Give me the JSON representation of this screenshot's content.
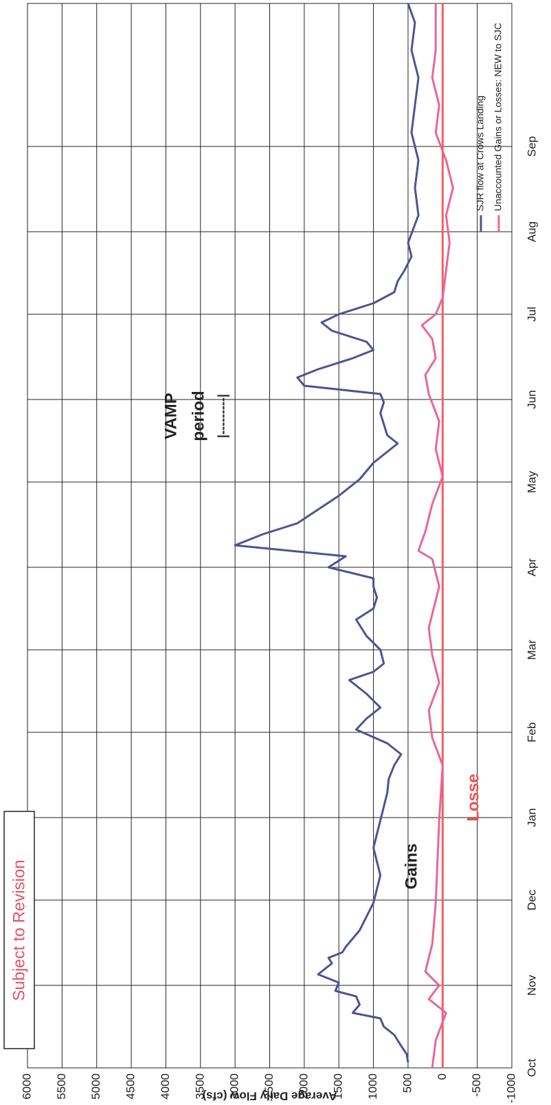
{
  "chart_data": {
    "type": "line",
    "subtitle": "Subject to Revision",
    "y_label": "Average Daily Flow (cfs)",
    "xlim": [
      0,
      387
    ],
    "xticks": [
      {
        "value": 0,
        "label": "Oct"
      },
      {
        "value": 30,
        "label": "Nov"
      },
      {
        "value": 61,
        "label": "Dec"
      },
      {
        "value": 91,
        "label": "Jan"
      },
      {
        "value": 122,
        "label": "Feb"
      },
      {
        "value": 152,
        "label": "Mar"
      },
      {
        "value": 182,
        "label": "Apr"
      },
      {
        "value": 213,
        "label": "May"
      },
      {
        "value": 243,
        "label": "Jun"
      },
      {
        "value": 274,
        "label": "Jul"
      },
      {
        "value": 304,
        "label": "Aug"
      },
      {
        "value": 335,
        "label": "Sep"
      }
    ],
    "ylim": [
      -1000,
      6000
    ],
    "yticks": [
      -1000,
      -500,
      0,
      500,
      1000,
      1500,
      2000,
      2500,
      3000,
      3500,
      4000,
      4500,
      5000,
      5500,
      6000
    ],
    "grid": true,
    "legend": "top-right",
    "annotations": [
      "Gains",
      "Losse",
      "VAMP",
      "period",
      "|---------|"
    ],
    "series": [
      {
        "name": "SJR flow at Crows Landing",
        "color": "#4a5494",
        "x": [
          2,
          5,
          8,
          12,
          15,
          18,
          20,
          23,
          26,
          28,
          31,
          34,
          36,
          38,
          40,
          42,
          44,
          47,
          50,
          55,
          60,
          65,
          70,
          75,
          80,
          85,
          90,
          95,
          100,
          105,
          110,
          114,
          118,
          123,
          127,
          131,
          136,
          141,
          144,
          147,
          152,
          157,
          163,
          167,
          171,
          175,
          178,
          182,
          186,
          190,
          194,
          198,
          203,
          208,
          214,
          220,
          224,
          227,
          230,
          234,
          238,
          242,
          245,
          248,
          251,
          254,
          258,
          261,
          264,
          268,
          271,
          274,
          278,
          282,
          286,
          290,
          295,
          300,
          310,
          320,
          330,
          340,
          350,
          360,
          370,
          380,
          387
        ],
        "values": [
          500,
          520,
          600,
          700,
          850,
          900,
          1300,
          1200,
          1250,
          1550,
          1500,
          1800,
          1700,
          1600,
          1650,
          1450,
          1400,
          1300,
          1200,
          1100,
          1000,
          950,
          900,
          950,
          1000,
          950,
          900,
          850,
          800,
          780,
          700,
          600,
          800,
          1250,
          1100,
          900,
          1100,
          1350,
          1000,
          850,
          900,
          1100,
          1250,
          1000,
          950,
          1000,
          1000,
          1650,
          1400,
          3000,
          2600,
          2100,
          1800,
          1500,
          1200,
          1000,
          800,
          650,
          800,
          850,
          900,
          850,
          900,
          2000,
          2100,
          1800,
          1300,
          1000,
          1100,
          1600,
          1750,
          1500,
          1000,
          700,
          650,
          550,
          450,
          500,
          350,
          400,
          350,
          450,
          400,
          350,
          450,
          400,
          500
        ]
      },
      {
        "name": "Unaccounted Gains or Losses: NEW to SJC",
        "color": "#e8659a",
        "x": [
          0,
          10,
          20,
          25,
          30,
          35,
          45,
          60,
          90,
          110,
          120,
          130,
          140,
          150,
          160,
          175,
          185,
          188,
          195,
          205,
          215,
          225,
          235,
          245,
          252,
          258,
          265,
          270,
          274,
          280,
          290,
          300,
          310,
          320,
          330,
          340,
          350,
          360,
          370,
          387
        ],
        "values": [
          150,
          100,
          -50,
          200,
          50,
          250,
          150,
          100,
          50,
          0,
          150,
          200,
          50,
          150,
          200,
          50,
          150,
          350,
          250,
          150,
          0,
          100,
          50,
          200,
          250,
          100,
          150,
          300,
          100,
          0,
          -50,
          -100,
          -50,
          -150,
          -50,
          100,
          50,
          150,
          100,
          100
        ]
      }
    ]
  }
}
